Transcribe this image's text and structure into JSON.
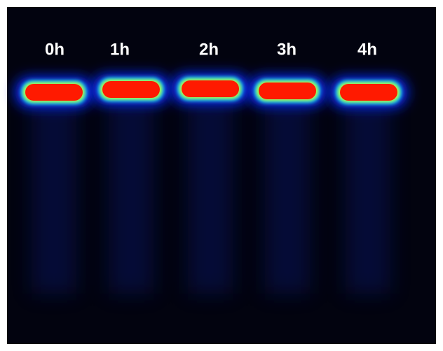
{
  "lanes": [
    {
      "label": "0h"
    },
    {
      "label": "1h"
    },
    {
      "label": "2h"
    },
    {
      "label": "3h"
    },
    {
      "label": "4h"
    }
  ]
}
